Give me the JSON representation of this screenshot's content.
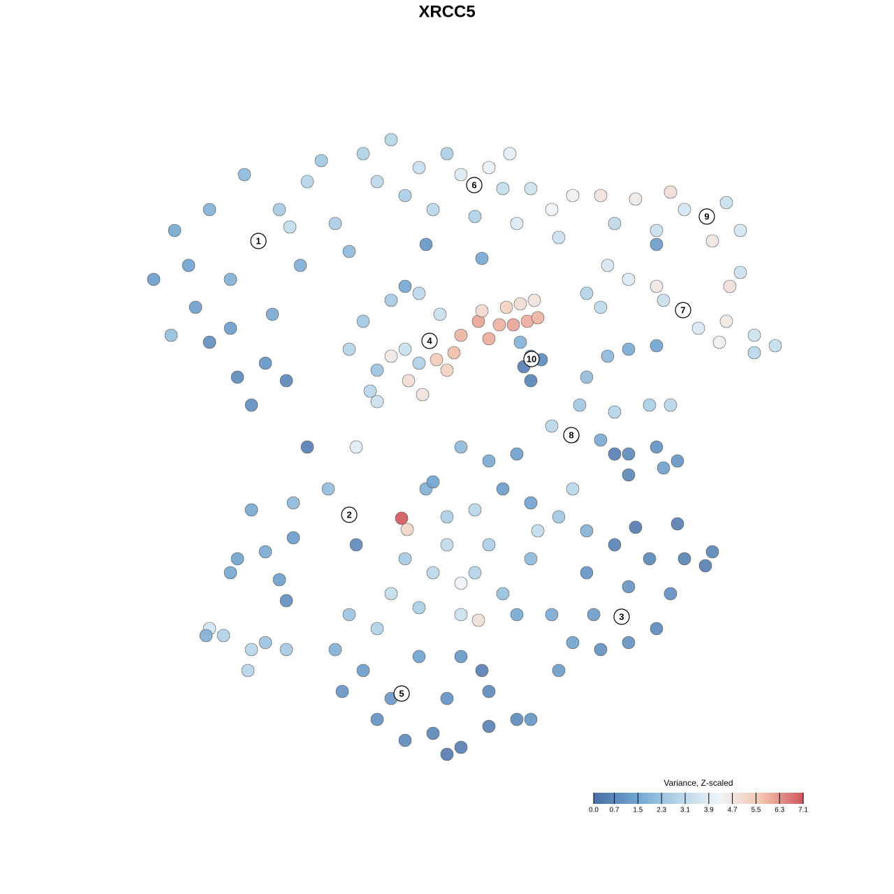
{
  "chart_data": {
    "type": "scatter",
    "title": "XRCC5",
    "xlim": [
      -64,
      64
    ],
    "ylim": [
      -64,
      64
    ],
    "x": [
      -27,
      -34,
      -39,
      -42,
      -36,
      -31,
      -24,
      -20,
      -29,
      -16,
      -21,
      -34,
      -30,
      -26,
      -23,
      -28,
      -39.5,
      -25,
      -14,
      -12,
      -18,
      -31,
      -37,
      -22.5,
      -8,
      -4,
      0,
      2,
      6,
      9,
      12,
      15,
      18,
      -2,
      4,
      10,
      16,
      -6,
      -10,
      8,
      -3,
      5,
      22,
      37,
      32,
      27,
      40,
      42,
      38,
      30,
      24,
      34,
      42,
      30,
      34,
      30,
      26,
      23,
      36,
      40,
      44,
      47,
      39,
      31,
      20,
      22,
      40.5,
      44,
      -2.5,
      -12,
      -14,
      -10,
      -11,
      -8,
      -4,
      -1,
      -6,
      -4,
      -10,
      -8,
      -6,
      -5.5,
      -3.5,
      -1.5,
      1,
      2,
      4.5,
      6,
      7.5,
      9.5,
      11.5,
      13,
      8.5,
      10.5,
      12.5,
      5,
      0,
      12,
      11,
      13.5,
      12,
      10.5,
      18,
      20,
      19,
      23,
      26,
      30,
      24,
      29,
      32,
      15,
      22,
      26,
      30,
      33,
      26,
      24,
      31,
      -14,
      -28,
      -22,
      -17,
      -30,
      -26,
      -22,
      -24,
      -23,
      -13,
      -31,
      -20,
      -13,
      -6.5,
      -5.7,
      -3,
      0,
      4,
      8,
      12,
      16,
      13,
      6,
      10,
      2,
      -2,
      -6,
      -2,
      4,
      8,
      -8,
      -4,
      2,
      4.5,
      0,
      6,
      12,
      10,
      18,
      20,
      -10,
      -14,
      2,
      25,
      29,
      34,
      37,
      38,
      32,
      26,
      21,
      18,
      22,
      26,
      30,
      16,
      20,
      24,
      33,
      27,
      15,
      -6.5,
      -12,
      -15,
      -10,
      -6,
      -2,
      2,
      6,
      10,
      12,
      0,
      -4,
      2,
      6,
      0,
      -16,
      -8,
      5,
      -34,
      -32,
      -28,
      -26,
      -28.5,
      -23,
      -34.5
    ],
    "y": [
      29.5,
      34,
      31,
      24,
      20,
      24,
      34,
      38,
      39,
      32,
      26,
      15,
      10,
      12,
      9.5,
      6,
      16,
      19,
      28,
      42,
      41,
      17,
      26,
      31.5,
      44,
      40,
      42,
      39,
      40,
      42,
      37,
      34,
      36,
      34,
      33,
      32,
      30,
      36,
      38,
      37,
      29,
      27,
      36,
      33,
      36.5,
      35.5,
      35,
      31,
      29.5,
      31,
      32,
      34,
      25,
      29,
      19.5,
      23,
      24,
      26,
      17,
      18,
      16,
      14.5,
      15,
      21,
      22,
      20,
      23,
      13.5,
      15,
      18,
      14,
      11,
      8,
      21,
      22,
      19,
      14,
      12,
      6.5,
      13,
      23,
      9.5,
      7.5,
      12.5,
      13.5,
      16,
      18,
      15.5,
      17.5,
      17.5,
      18,
      18.5,
      20,
      20.5,
      21,
      19.5,
      11,
      13,
      11.5,
      12.5,
      9.5,
      15,
      1.5,
      10,
      6,
      13,
      14,
      14.5,
      5,
      6,
      6,
      3,
      1,
      -1,
      0,
      -2,
      -4,
      -1,
      -3,
      -9.7,
      -9,
      -8,
      -6,
      -16,
      -15,
      -13,
      -19,
      -22,
      -14,
      -18,
      0,
      0,
      -10.2,
      -11.8,
      -6,
      -10,
      -9,
      -6,
      -8,
      -10,
      -12,
      -2,
      -1,
      0,
      -5,
      -16,
      -18,
      -18,
      -21,
      -21,
      -23,
      -24,
      -24.8,
      -14,
      -14,
      -16,
      -24,
      -6,
      -12,
      -26,
      -24,
      -19.5,
      -24.3,
      -16,
      -16,
      -17,
      -15,
      -21,
      -20,
      -24,
      -28,
      -29,
      -28,
      -26,
      -32,
      -18,
      -14,
      -11,
      -11.5,
      -24,
      -35.3,
      -32,
      -35,
      -39,
      -42,
      -41,
      -43,
      -40,
      -39,
      -39,
      -36,
      -30,
      -30,
      -35,
      -44,
      -29,
      -36,
      -32,
      -26,
      -27,
      -29,
      -28,
      -32,
      -29,
      -27
    ],
    "values": [
      2.0,
      1.8,
      1.5,
      1.2,
      1.3,
      1.8,
      2.5,
      2.8,
      2.0,
      2.6,
      1.7,
      0.8,
      0.7,
      1.0,
      0.6,
      0.8,
      2.2,
      1.6,
      2.0,
      2.7,
      2.4,
      1.2,
      1.4,
      3.1,
      2.8,
      3.3,
      2.6,
      3.8,
      4.1,
      4.0,
      3.4,
      4.2,
      4.4,
      2.9,
      2.7,
      3.8,
      3.4,
      2.6,
      3.0,
      3.2,
      1.0,
      1.5,
      4.8,
      3.5,
      4.9,
      4.6,
      3.3,
      3.6,
      4.7,
      3.3,
      3.0,
      3.6,
      3.4,
      1.2,
      3.5,
      4.7,
      3.8,
      3.6,
      3.7,
      4.6,
      3.4,
      3.2,
      4.4,
      3.3,
      2.8,
      3.0,
      4.9,
      2.9,
      2.6,
      2.4,
      2.8,
      2.3,
      2.9,
      2.5,
      3.0,
      3.3,
      3.3,
      2.7,
      3.4,
      4.6,
      1.5,
      5.0,
      4.8,
      5.5,
      5.8,
      5.9,
      6.1,
      6.0,
      5.9,
      6.1,
      6.0,
      5.9,
      5.3,
      5.0,
      4.8,
      5.1,
      5.3,
      0.6,
      0.4,
      0.7,
      0.5,
      1.8,
      1.8,
      2.1,
      2.4,
      2.0,
      1.6,
      1.4,
      2.8,
      2.6,
      2.9,
      2.9,
      1.6,
      0.7,
      0.9,
      1.0,
      0.6,
      0.4,
      1.3,
      1.6,
      1.5,
      2.0,
      2.1,
      1.4,
      1.6,
      1.2,
      1.3,
      0.8,
      0.7,
      1.5,
      0.4,
      3.9,
      7.1,
      5.2,
      1.8,
      2.6,
      2.9,
      1.2,
      1.4,
      2.4,
      3.1,
      1.6,
      1.3,
      2.0,
      1.4,
      2.5,
      3.0,
      2.8,
      2.2,
      3.2,
      2.6,
      3.4,
      4.9,
      3.1,
      2.6,
      2.0,
      1.5,
      2.9,
      1.8,
      2.7,
      2.3,
      4.2,
      0.8,
      0.6,
      0.5,
      0.4,
      0.6,
      0.8,
      1.0,
      1.2,
      1.4,
      0.9,
      0.9,
      0.7,
      1.2,
      1.0,
      0.5,
      0.4,
      0.3,
      1.6,
      0.8,
      1.2,
      1.0,
      0.9,
      0.7,
      0.6,
      0.4,
      0.5,
      0.7,
      1.0,
      0.9,
      1.4,
      1.1,
      0.7,
      0.3,
      1.8,
      1.1,
      0.4,
      3.5,
      2.7,
      2.9,
      2.3,
      2.8,
      2.5,
      1.8
    ],
    "clusters": {
      "labels": [
        "1",
        "2",
        "3",
        "4",
        "5",
        "6",
        "7",
        "8",
        "9",
        "10"
      ],
      "x": [
        -27,
        -14,
        25,
        -2.5,
        -6.5,
        3.9,
        33.8,
        17.8,
        37.2,
        12.1
      ],
      "y": [
        29.5,
        -9.7,
        -24.3,
        15.2,
        -35.3,
        37.5,
        19.6,
        1.7,
        33,
        12.6
      ]
    },
    "colorbar": {
      "title": "Variance, Z-scaled",
      "clim": [
        0,
        7.1
      ],
      "colors": [
        "#4a6ea5",
        "#6fa3cf",
        "#b5d5e8",
        "#eef4f8",
        "#f4c4ae",
        "#d0555e"
      ],
      "ticks": [
        {
          "value": 0,
          "label": "0.0"
        },
        0.7,
        1.5,
        2.3,
        3.1,
        3.9,
        4.7,
        5.5,
        6.3,
        7.1
      ]
    }
  }
}
